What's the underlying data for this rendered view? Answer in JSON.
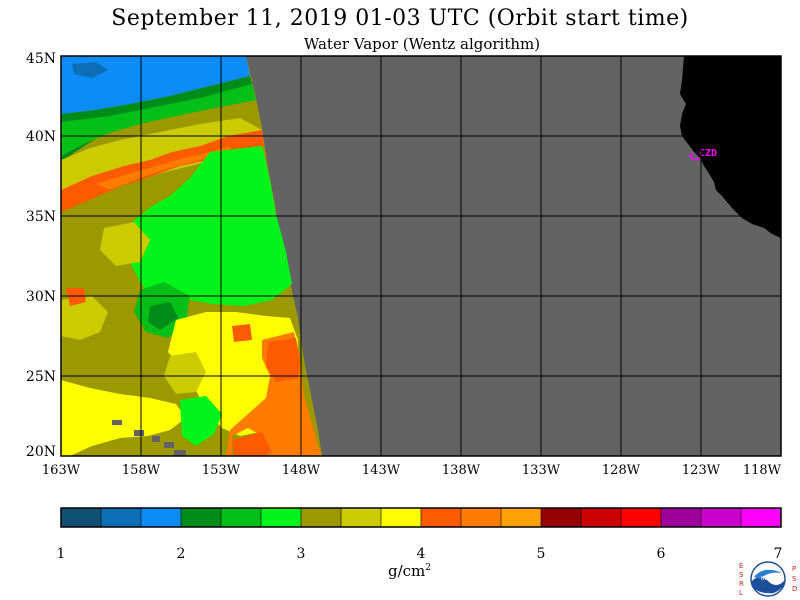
{
  "title": "September 11, 2019  01-03 UTC  (Orbit start time)",
  "subtitle": "Water Vapor (Wentz algorithm)",
  "map": {
    "lat_labels": [
      "45N",
      "40N",
      "35N",
      "30N",
      "25N",
      "20N"
    ],
    "lon_labels": [
      "163W",
      "158W",
      "153W",
      "148W",
      "143W",
      "138W",
      "133W",
      "128W",
      "123W",
      "118W"
    ],
    "station_label": "CZD",
    "colors": {
      "no_data": "#636363",
      "land": "#000000",
      "station": "#ff00ff",
      "grid": "#000000"
    }
  },
  "colorbar": {
    "tick_labels": [
      "1",
      "2",
      "3",
      "4",
      "5",
      "6",
      "7"
    ],
    "units": "g/cm",
    "units_exp": "2",
    "colors": [
      "#0f5074",
      "#0c6eb4",
      "#0b8cf6",
      "#008c19",
      "#04bf17",
      "#00f41a",
      "#9b9800",
      "#cccb00",
      "#ffff00",
      "#fe5a00",
      "#ff7c00",
      "#ffa007",
      "#950000",
      "#cc0000",
      "#ff0000",
      "#9d009b",
      "#cb00cb",
      "#fe00fe"
    ]
  },
  "logo": {
    "left_letters": [
      "E",
      "S",
      "R",
      "L"
    ],
    "right_letters": [
      "P",
      "S",
      "D"
    ],
    "center_text": "NOAA"
  }
}
